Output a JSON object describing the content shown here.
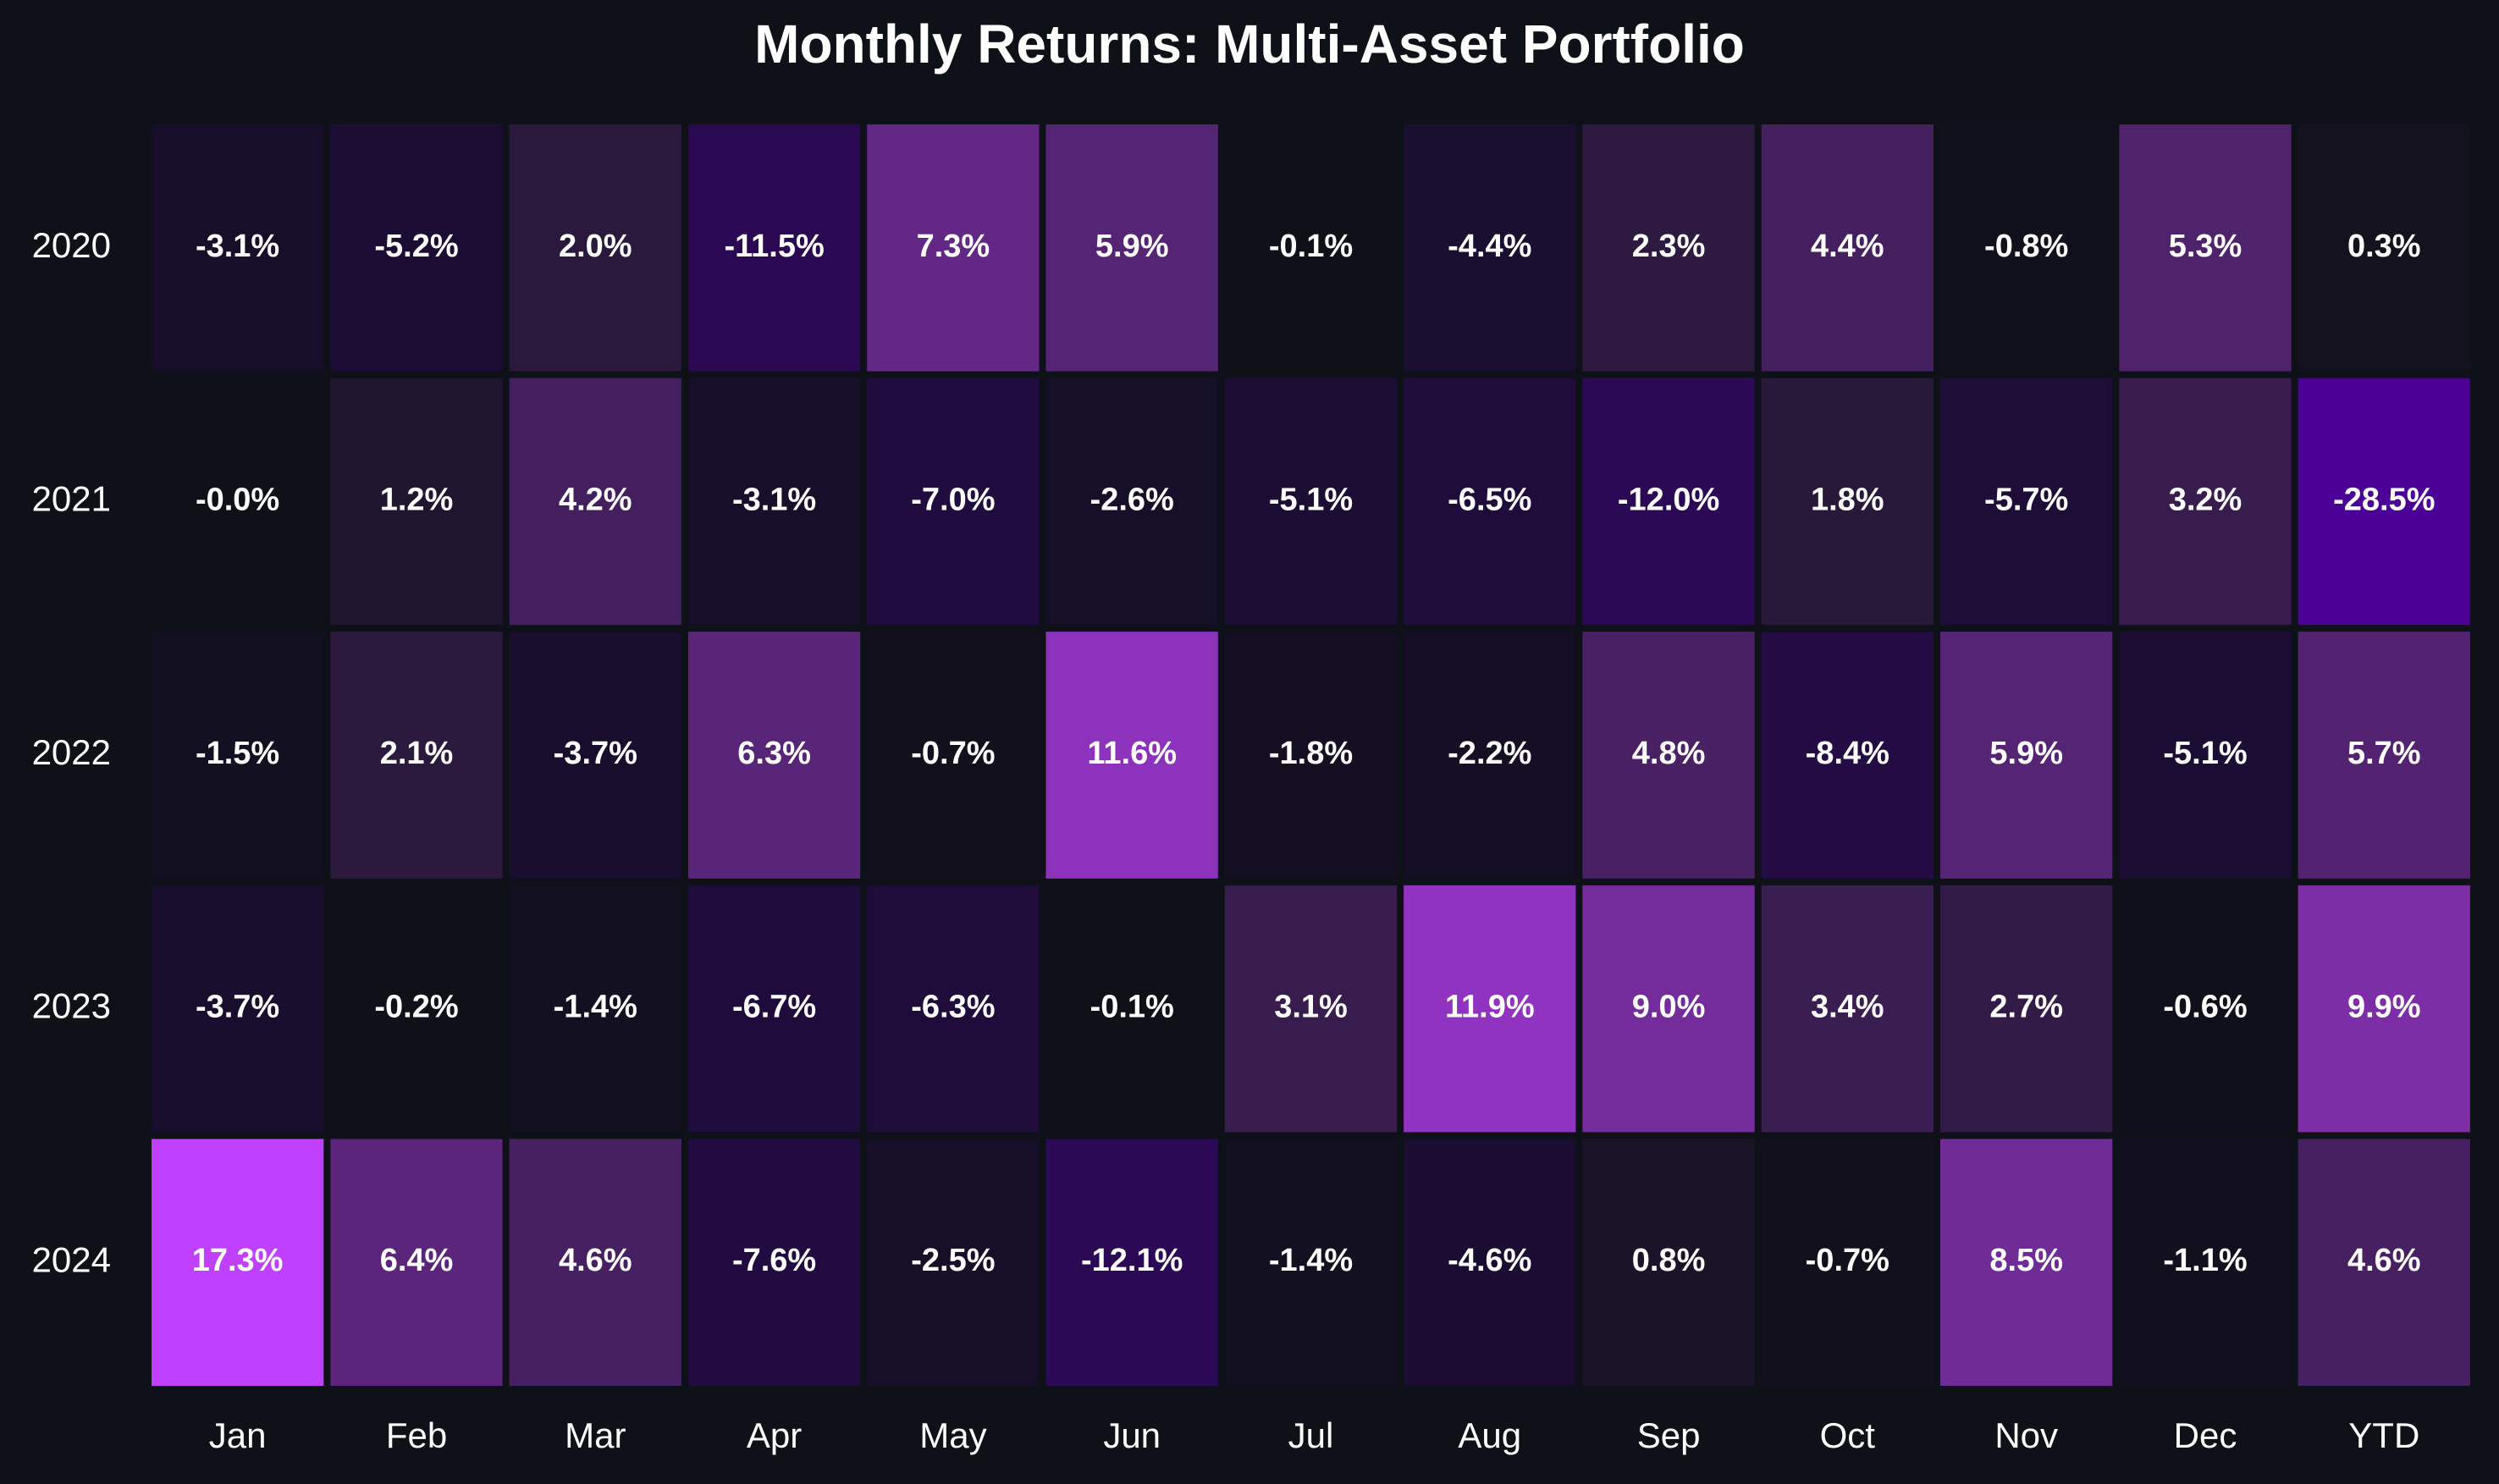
{
  "chart_data": {
    "type": "heatmap",
    "title": "Monthly Returns: Multi-Asset Portfolio",
    "xlabel": "",
    "ylabel": "",
    "x_categories": [
      "Jan",
      "Feb",
      "Mar",
      "Apr",
      "May",
      "Jun",
      "Jul",
      "Aug",
      "Sep",
      "Oct",
      "Nov",
      "Dec",
      "YTD"
    ],
    "y_categories": [
      "2020",
      "2021",
      "2022",
      "2023",
      "2024"
    ],
    "values": [
      [
        -3.1,
        -5.2,
        2.0,
        -11.5,
        7.3,
        5.9,
        -0.1,
        -4.4,
        2.3,
        4.4,
        -0.8,
        5.3,
        0.3
      ],
      [
        -0.0,
        1.2,
        4.2,
        -3.1,
        -7.0,
        -2.6,
        -5.1,
        -6.5,
        -12.0,
        1.8,
        -5.7,
        3.2,
        -28.5
      ],
      [
        -1.5,
        2.1,
        -3.7,
        6.3,
        -0.7,
        11.6,
        -1.8,
        -2.2,
        4.8,
        -8.4,
        5.9,
        -5.1,
        5.7
      ],
      [
        -3.7,
        -0.2,
        -1.4,
        -6.7,
        -6.3,
        -0.1,
        3.1,
        11.9,
        9.0,
        3.4,
        2.7,
        -0.6,
        9.9
      ],
      [
        17.3,
        6.4,
        4.6,
        -7.6,
        -2.5,
        -12.1,
        -1.4,
        -4.6,
        0.8,
        -0.7,
        8.5,
        -1.1,
        4.6
      ]
    ],
    "cell_labels": [
      [
        "-3.1%",
        "-5.2%",
        "2.0%",
        "-11.5%",
        "7.3%",
        "5.9%",
        "-0.1%",
        "-4.4%",
        "2.3%",
        "4.4%",
        "-0.8%",
        "5.3%",
        "0.3%"
      ],
      [
        "-0.0%",
        "1.2%",
        "4.2%",
        "-3.1%",
        "-7.0%",
        "-2.6%",
        "-5.1%",
        "-6.5%",
        "-12.0%",
        "1.8%",
        "-5.7%",
        "3.2%",
        "-28.5%"
      ],
      [
        "-1.5%",
        "2.1%",
        "-3.7%",
        "6.3%",
        "-0.7%",
        "11.6%",
        "-1.8%",
        "-2.2%",
        "4.8%",
        "-8.4%",
        "5.9%",
        "-5.1%",
        "5.7%"
      ],
      [
        "-3.7%",
        "-0.2%",
        "-1.4%",
        "-6.7%",
        "-6.3%",
        "-0.1%",
        "3.1%",
        "11.9%",
        "9.0%",
        "3.4%",
        "2.7%",
        "-0.6%",
        "9.9%"
      ],
      [
        "17.3%",
        "6.4%",
        "4.6%",
        "-7.6%",
        "-2.5%",
        "-12.1%",
        "-1.4%",
        "-4.6%",
        "0.8%",
        "-0.7%",
        "8.5%",
        "-1.1%",
        "4.6%"
      ]
    ],
    "colors": {
      "background": "#0e1117",
      "neutral": "#0e1117",
      "positive": "#bf40ff",
      "negative": "#4b0096",
      "text": "#ffffff"
    },
    "legend": "none",
    "grid": false
  }
}
